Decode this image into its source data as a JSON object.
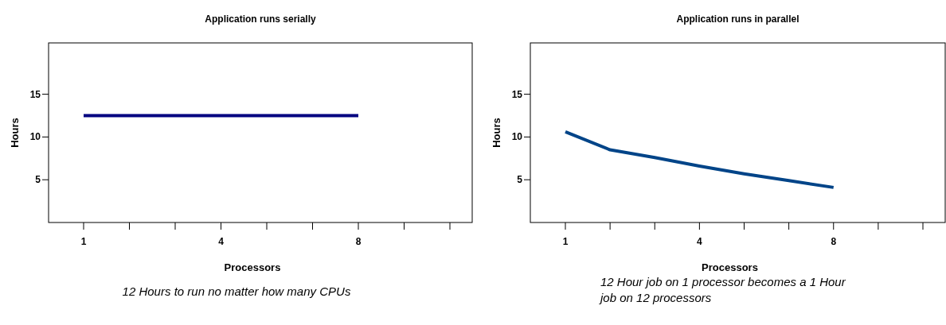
{
  "chart_data": [
    {
      "type": "line",
      "title": "Application runs serially",
      "xlabel": "Processors",
      "ylabel": "Hours",
      "categories": [
        "1",
        null,
        null,
        "4",
        null,
        null,
        "8",
        null,
        null
      ],
      "series": [
        {
          "color": "#000080",
          "values": [
            12.5,
            12.5,
            12.5,
            12.5,
            12.5,
            12.5,
            12.5,
            null,
            null
          ]
        }
      ],
      "ylim": [
        0,
        21
      ],
      "yticks": [
        5,
        10,
        15
      ],
      "annotations": [
        "12 Hours to run no matter how many CPUs"
      ]
    },
    {
      "type": "line",
      "title": "Application runs in parallel",
      "xlabel": "Processors",
      "ylabel": "Hours",
      "categories": [
        "1",
        null,
        null,
        "4",
        null,
        null,
        "8",
        null,
        null
      ],
      "series": [
        {
          "color": "#004488",
          "values": [
            10.6,
            8.5,
            7.6,
            6.6,
            5.7,
            4.9,
            4.1,
            null,
            null
          ]
        }
      ],
      "ylim": [
        0,
        21
      ],
      "yticks": [
        5,
        10,
        15
      ],
      "annotations": [
        "12 Hour job on 1 processor becomes a 1 Hour job on 12 processors"
      ]
    }
  ]
}
